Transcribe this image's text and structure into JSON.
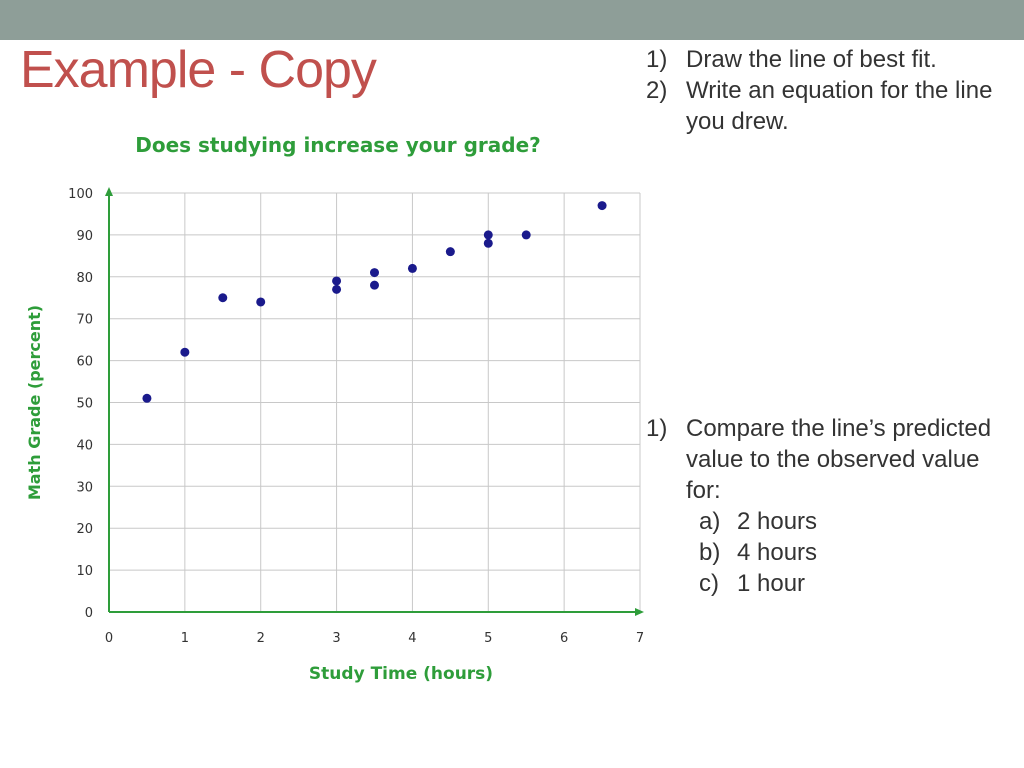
{
  "slide": {
    "title": "Example - Copy",
    "instructions_top": [
      {
        "num": "1)",
        "text": "Draw the line of best fit."
      },
      {
        "num": "2)",
        "text": "Write an equation for the line you drew."
      }
    ],
    "instructions_bottom": {
      "num": "1)",
      "text": "Compare the line’s predicted value to the observed value for:",
      "subitems": [
        {
          "num": "a)",
          "text": "2 hours"
        },
        {
          "num": "b)",
          "text": "4 hours"
        },
        {
          "num": "c)",
          "text": "1 hour"
        }
      ]
    }
  },
  "colors": {
    "top_bar": "#8e9e98",
    "title": "#c0504d",
    "axis_and_labels": "#2e9d3a",
    "points": "#1a1a8c",
    "grid": "#c8c8c8"
  },
  "chart_data": {
    "type": "scatter",
    "title": "Does studying increase your grade?",
    "xlabel": "Study Time (hours)",
    "ylabel": "Math Grade (percent)",
    "xlim": [
      0,
      7
    ],
    "ylim": [
      0,
      100
    ],
    "x_ticks": [
      "0",
      "1",
      "2",
      "3",
      "4",
      "5",
      "6",
      "7"
    ],
    "y_ticks": [
      "0",
      "10",
      "20",
      "30",
      "40",
      "50",
      "60",
      "70",
      "80",
      "90",
      "100"
    ],
    "grid": true,
    "legend": "none",
    "points": [
      {
        "x": 0.5,
        "y": 51
      },
      {
        "x": 1,
        "y": 62
      },
      {
        "x": 1.5,
        "y": 75
      },
      {
        "x": 2,
        "y": 74
      },
      {
        "x": 3,
        "y": 79
      },
      {
        "x": 3,
        "y": 77
      },
      {
        "x": 3.5,
        "y": 81
      },
      {
        "x": 3.5,
        "y": 78
      },
      {
        "x": 4,
        "y": 82
      },
      {
        "x": 4.5,
        "y": 86
      },
      {
        "x": 5,
        "y": 90
      },
      {
        "x": 5,
        "y": 88
      },
      {
        "x": 5.5,
        "y": 90
      },
      {
        "x": 6.5,
        "y": 97
      }
    ]
  }
}
